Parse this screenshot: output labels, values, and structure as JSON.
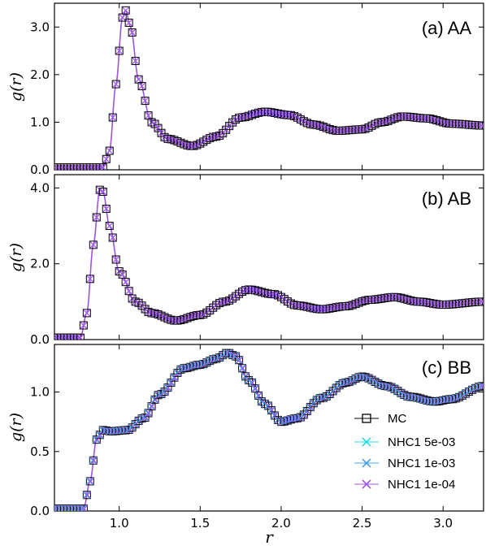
{
  "chart_data": [
    {
      "type": "line",
      "title": "(a) AA",
      "ylabel": "g(r)",
      "xlabel": "",
      "xlim": [
        0.6,
        3.25
      ],
      "ylim": [
        0,
        3.5
      ],
      "xticks": [
        "1.0",
        "1.5",
        "2.0",
        "2.5",
        "3.0"
      ],
      "yticks": [
        "0.0",
        "1.0",
        "2.0",
        "3.0"
      ],
      "ytick_values": [
        0,
        1,
        2,
        3
      ],
      "peaks": [
        [
          0.6,
          0.05
        ],
        [
          0.9,
          0.05
        ],
        [
          0.94,
          0.4
        ],
        [
          0.98,
          1.8
        ],
        [
          1.02,
          3.2
        ],
        [
          1.04,
          3.35
        ],
        [
          1.07,
          3.0
        ],
        [
          1.12,
          1.9
        ],
        [
          1.2,
          1.0
        ],
        [
          1.3,
          0.65
        ],
        [
          1.45,
          0.5
        ],
        [
          1.6,
          0.7
        ],
        [
          1.75,
          1.1
        ],
        [
          1.9,
          1.22
        ],
        [
          2.05,
          1.15
        ],
        [
          2.2,
          0.95
        ],
        [
          2.35,
          0.82
        ],
        [
          2.5,
          0.85
        ],
        [
          2.62,
          1.0
        ],
        [
          2.75,
          1.12
        ],
        [
          2.9,
          1.08
        ],
        [
          3.05,
          0.97
        ],
        [
          3.25,
          0.93
        ]
      ]
    },
    {
      "type": "line",
      "title": "(b) AB",
      "ylabel": "g(r)",
      "xlabel": "",
      "xlim": [
        0.6,
        3.25
      ],
      "ylim": [
        0,
        4.35
      ],
      "xticks": [
        "1.0",
        "1.5",
        "2.0",
        "2.5",
        "3.0"
      ],
      "yticks": [
        "0.0",
        "2.0",
        "4.0"
      ],
      "ytick_values": [
        0,
        2,
        4
      ],
      "peaks": [
        [
          0.6,
          0.05
        ],
        [
          0.76,
          0.05
        ],
        [
          0.8,
          0.7
        ],
        [
          0.84,
          2.5
        ],
        [
          0.88,
          3.95
        ],
        [
          0.9,
          3.9
        ],
        [
          0.94,
          3.0
        ],
        [
          1.0,
          1.8
        ],
        [
          1.1,
          1.0
        ],
        [
          1.2,
          0.7
        ],
        [
          1.35,
          0.5
        ],
        [
          1.5,
          0.65
        ],
        [
          1.65,
          1.0
        ],
        [
          1.8,
          1.32
        ],
        [
          1.95,
          1.2
        ],
        [
          2.1,
          0.9
        ],
        [
          2.25,
          0.8
        ],
        [
          2.4,
          0.88
        ],
        [
          2.55,
          1.05
        ],
        [
          2.7,
          1.12
        ],
        [
          2.85,
          1.0
        ],
        [
          3.0,
          0.92
        ],
        [
          3.25,
          1.0
        ]
      ]
    },
    {
      "type": "line",
      "title": "(c) BB",
      "ylabel": "g(r)",
      "xlabel": "r",
      "xlim": [
        0.6,
        3.25
      ],
      "ylim": [
        0,
        1.4
      ],
      "xticks": [
        "1.0",
        "1.5",
        "2.0",
        "2.5",
        "3.0"
      ],
      "yticks": [
        "0.0",
        "0.5",
        "1.0"
      ],
      "ytick_values": [
        0,
        0.5,
        1.0
      ],
      "peaks": [
        [
          0.6,
          0.02
        ],
        [
          0.78,
          0.02
        ],
        [
          0.82,
          0.25
        ],
        [
          0.86,
          0.6
        ],
        [
          0.9,
          0.68
        ],
        [
          0.95,
          0.67
        ],
        [
          1.05,
          0.68
        ],
        [
          1.15,
          0.78
        ],
        [
          1.25,
          0.98
        ],
        [
          1.4,
          1.2
        ],
        [
          1.5,
          1.23
        ],
        [
          1.6,
          1.28
        ],
        [
          1.67,
          1.33
        ],
        [
          1.72,
          1.3
        ],
        [
          1.8,
          1.1
        ],
        [
          1.9,
          0.9
        ],
        [
          2.0,
          0.75
        ],
        [
          2.1,
          0.78
        ],
        [
          2.25,
          0.95
        ],
        [
          2.4,
          1.08
        ],
        [
          2.5,
          1.13
        ],
        [
          2.65,
          1.05
        ],
        [
          2.8,
          0.96
        ],
        [
          2.95,
          0.92
        ],
        [
          3.05,
          0.94
        ],
        [
          3.25,
          1.05
        ]
      ]
    }
  ],
  "legend": {
    "position": "lower-right of panel (c)",
    "entries": [
      {
        "label": "MC",
        "marker": "square",
        "color": "#000000"
      },
      {
        "label": "NHC1 5e-03",
        "marker": "x",
        "color": "#2fd8e8"
      },
      {
        "label": "NHC1 1e-03",
        "marker": "x",
        "color": "#4aa3e8"
      },
      {
        "label": "NHC1 1e-04",
        "marker": "x",
        "color": "#a05ae8"
      }
    ]
  },
  "colors": {
    "line": "#9a55e0",
    "mc_marker": "#000000"
  }
}
